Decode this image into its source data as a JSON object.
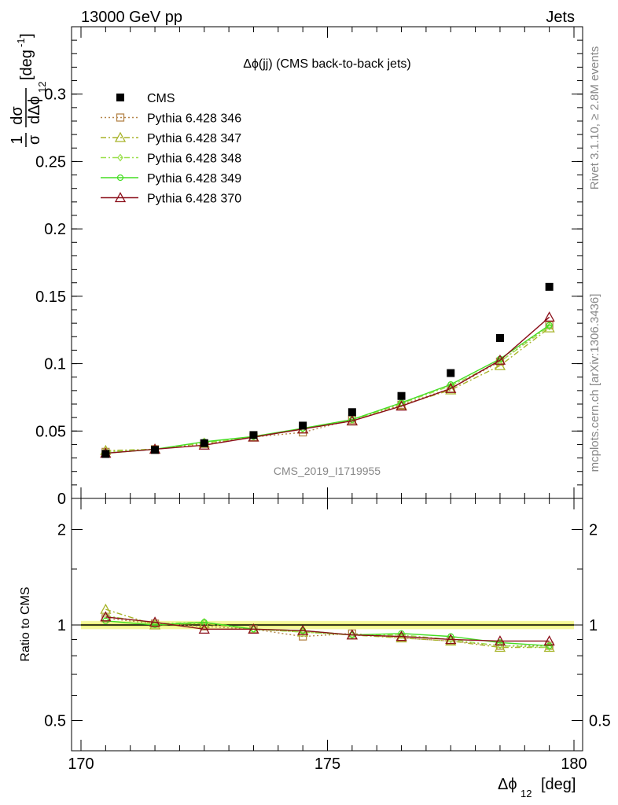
{
  "header": {
    "left": "13000 GeV pp",
    "right": "Jets"
  },
  "side_text": {
    "rivet": "Rivet 3.1.10, ≥ 2.8M events",
    "mcplots": "mcplots.cern.ch [arXiv:1306.3436]"
  },
  "colors": {
    "cms": "#000000",
    "p346": "#b5854a",
    "p347": "#a8b42a",
    "p348": "#99e04a",
    "p349": "#44dd22",
    "p370": "#8b0f1a",
    "band": "#f4f7a0"
  },
  "chart_data": [
    {
      "type": "line",
      "panel": "main",
      "title": "Δϕ(jj) (CMS back-to-back jets)",
      "watermark": "CMS_2019_I1719955",
      "ylabel_parts": {
        "frac_num": "1",
        "frac_den": "σ",
        "d_num": "dσ",
        "d_den": "dΔϕ",
        "sub": "12",
        "unit": "[deg",
        "unit_exp": "-1",
        "unit_close": "]"
      },
      "ylim": [
        0,
        0.35
      ],
      "yticks": [
        "0",
        "0.05",
        "0.1",
        "0.15",
        "0.2",
        "0.25",
        "0.3"
      ],
      "yticks_values": [
        0,
        0.05,
        0.1,
        0.15,
        0.2,
        0.25,
        0.3
      ],
      "xlim": [
        170,
        180
      ],
      "x": [
        170.5,
        171.5,
        172.5,
        173.5,
        174.5,
        175.5,
        176.5,
        177.5,
        178.5,
        179.5
      ],
      "series": [
        {
          "name": "CMS",
          "key": "cms",
          "marker": "square",
          "values": [
            0.033,
            0.036,
            0.041,
            0.047,
            0.054,
            0.064,
            0.076,
            0.093,
            0.119,
            0.157
          ]
        },
        {
          "name": "Pythia 6.428 346",
          "key": "p346",
          "marker": "open-square",
          "dash": "2,3",
          "values": [
            0.0345,
            0.0365,
            0.0405,
            0.0455,
            0.049,
            0.0585,
            0.0695,
            0.0815,
            0.1015,
            0.1285
          ]
        },
        {
          "name": "Pythia 6.428 347",
          "key": "p347",
          "marker": "open-triangle",
          "dash": "7,3,2,3",
          "values": [
            0.0355,
            0.0365,
            0.041,
            0.0455,
            0.0515,
            0.0575,
            0.069,
            0.0805,
            0.0985,
            0.1265
          ]
        },
        {
          "name": "Pythia 6.428 348",
          "key": "p348",
          "marker": "open-diamond",
          "dash": "7,3,2,3",
          "values": [
            0.0345,
            0.0365,
            0.0415,
            0.0455,
            0.0515,
            0.058,
            0.0705,
            0.0835,
            0.1015,
            0.1275
          ]
        },
        {
          "name": "Pythia 6.428 349",
          "key": "p349",
          "marker": "open-circle-cross",
          "dash": "",
          "values": [
            0.0335,
            0.0365,
            0.042,
            0.046,
            0.052,
            0.0585,
            0.071,
            0.0845,
            0.1035,
            0.1285
          ]
        },
        {
          "name": "Pythia 6.428 370",
          "key": "p370",
          "marker": "open-triangle",
          "dash": "",
          "values": [
            0.0335,
            0.0365,
            0.0395,
            0.0455,
            0.0515,
            0.0575,
            0.0685,
            0.0815,
            0.1025,
            0.1345
          ]
        }
      ]
    },
    {
      "type": "line",
      "panel": "ratio",
      "ylabel": "Ratio to CMS",
      "ylim": [
        0.36,
        2.3
      ],
      "yticks": [
        "0.5",
        "1",
        "2"
      ],
      "yticks_values": [
        0.5,
        1,
        2
      ],
      "xlabel_parts": {
        "main": "Δϕ",
        "sub": "12",
        "unit": "[deg]"
      },
      "xticks": [
        "170",
        "175",
        "180"
      ],
      "xticks_values": [
        170,
        175,
        180
      ],
      "xlim": [
        170,
        180
      ],
      "x": [
        170.5,
        171.5,
        172.5,
        173.5,
        174.5,
        175.5,
        176.5,
        177.5,
        178.5,
        179.5
      ],
      "series": [
        {
          "name": "CMS",
          "key": "cms",
          "values": [
            1,
            1,
            1,
            1,
            1,
            1,
            1,
            1,
            1,
            1
          ]
        },
        {
          "name": "Pythia 6.428 346",
          "key": "p346",
          "marker": "open-square",
          "dash": "2,3",
          "values": [
            1.05,
            1.01,
            0.99,
            0.97,
            0.92,
            0.94,
            0.91,
            0.89,
            0.86,
            0.86
          ]
        },
        {
          "name": "Pythia 6.428 347",
          "key": "p347",
          "marker": "open-triangle",
          "dash": "7,3,2,3",
          "values": [
            1.12,
            1.0,
            1.01,
            0.97,
            0.95,
            0.93,
            0.91,
            0.89,
            0.85,
            0.85
          ]
        },
        {
          "name": "Pythia 6.428 348",
          "key": "p348",
          "marker": "open-diamond",
          "dash": "7,3,2,3",
          "values": [
            1.07,
            1.01,
            1.02,
            0.97,
            0.95,
            0.93,
            0.93,
            0.9,
            0.86,
            0.85
          ]
        },
        {
          "name": "Pythia 6.428 349",
          "key": "p349",
          "marker": "open-circle-cross",
          "dash": "",
          "values": [
            1.03,
            1.0,
            1.02,
            0.97,
            0.96,
            0.93,
            0.94,
            0.92,
            0.88,
            0.86
          ]
        },
        {
          "name": "Pythia 6.428 370",
          "key": "p370",
          "marker": "open-triangle",
          "dash": "",
          "values": [
            1.06,
            1.02,
            0.97,
            0.97,
            0.96,
            0.93,
            0.92,
            0.9,
            0.89,
            0.89
          ]
        }
      ]
    }
  ]
}
